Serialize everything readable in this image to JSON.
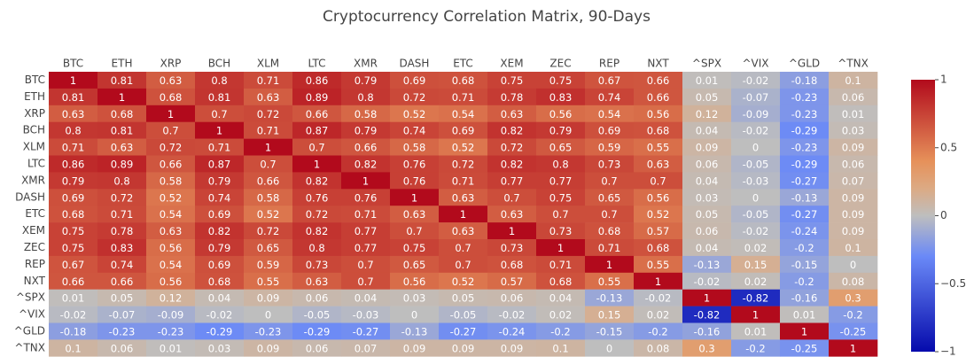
{
  "chart_data": {
    "type": "heatmap",
    "title": "Cryptocurrency Correlation Matrix, 90-Days",
    "x": [
      "BTC",
      "ETH",
      "XRP",
      "BCH",
      "XLM",
      "LTC",
      "XMR",
      "DASH",
      "ETC",
      "XEM",
      "ZEC",
      "REP",
      "NXT",
      "^SPX",
      "^VIX",
      "^GLD",
      "^TNX"
    ],
    "y": [
      "BTC",
      "ETH",
      "XRP",
      "BCH",
      "XLM",
      "LTC",
      "XMR",
      "DASH",
      "ETC",
      "XEM",
      "ZEC",
      "REP",
      "NXT",
      "^SPX",
      "^VIX",
      "^GLD",
      "^TNX"
    ],
    "z": [
      [
        1,
        0.81,
        0.63,
        0.8,
        0.71,
        0.86,
        0.79,
        0.69,
        0.68,
        0.75,
        0.75,
        0.67,
        0.66,
        0.01,
        -0.02,
        -0.18,
        0.1
      ],
      [
        0.81,
        1,
        0.68,
        0.81,
        0.63,
        0.89,
        0.8,
        0.72,
        0.71,
        0.78,
        0.83,
        0.74,
        0.66,
        0.05,
        -0.07,
        -0.23,
        0.06
      ],
      [
        0.63,
        0.68,
        1,
        0.7,
        0.72,
        0.66,
        0.58,
        0.52,
        0.54,
        0.63,
        0.56,
        0.54,
        0.56,
        0.12,
        -0.09,
        -0.23,
        0.01
      ],
      [
        0.8,
        0.81,
        0.7,
        1,
        0.71,
        0.87,
        0.79,
        0.74,
        0.69,
        0.82,
        0.79,
        0.69,
        0.68,
        0.04,
        -0.02,
        -0.29,
        0.03
      ],
      [
        0.71,
        0.63,
        0.72,
        0.71,
        1,
        0.7,
        0.66,
        0.58,
        0.52,
        0.72,
        0.65,
        0.59,
        0.55,
        0.09,
        0,
        -0.23,
        0.09
      ],
      [
        0.86,
        0.89,
        0.66,
        0.87,
        0.7,
        1,
        0.82,
        0.76,
        0.72,
        0.82,
        0.8,
        0.73,
        0.63,
        0.06,
        -0.05,
        -0.29,
        0.06
      ],
      [
        0.79,
        0.8,
        0.58,
        0.79,
        0.66,
        0.82,
        1,
        0.76,
        0.71,
        0.77,
        0.77,
        0.7,
        0.7,
        0.04,
        -0.03,
        -0.27,
        0.07
      ],
      [
        0.69,
        0.72,
        0.52,
        0.74,
        0.58,
        0.76,
        0.76,
        1,
        0.63,
        0.7,
        0.75,
        0.65,
        0.56,
        0.03,
        0,
        -0.13,
        0.09
      ],
      [
        0.68,
        0.71,
        0.54,
        0.69,
        0.52,
        0.72,
        0.71,
        0.63,
        1,
        0.63,
        0.7,
        0.7,
        0.52,
        0.05,
        -0.05,
        -0.27,
        0.09
      ],
      [
        0.75,
        0.78,
        0.63,
        0.82,
        0.72,
        0.82,
        0.77,
        0.7,
        0.63,
        1,
        0.73,
        0.68,
        0.57,
        0.06,
        -0.02,
        -0.24,
        0.09
      ],
      [
        0.75,
        0.83,
        0.56,
        0.79,
        0.65,
        0.8,
        0.77,
        0.75,
        0.7,
        0.73,
        1,
        0.71,
        0.68,
        0.04,
        0.02,
        -0.2,
        0.1
      ],
      [
        0.67,
        0.74,
        0.54,
        0.69,
        0.59,
        0.73,
        0.7,
        0.65,
        0.7,
        0.68,
        0.71,
        1,
        0.55,
        -0.13,
        0.15,
        -0.15,
        0
      ],
      [
        0.66,
        0.66,
        0.56,
        0.68,
        0.55,
        0.63,
        0.7,
        0.56,
        0.52,
        0.57,
        0.68,
        0.55,
        1,
        -0.02,
        0.02,
        -0.2,
        0.08
      ],
      [
        0.01,
        0.05,
        0.12,
        0.04,
        0.09,
        0.06,
        0.04,
        0.03,
        0.05,
        0.06,
        0.04,
        -0.13,
        -0.02,
        1,
        -0.82,
        -0.16,
        0.3
      ],
      [
        -0.02,
        -0.07,
        -0.09,
        -0.02,
        0,
        -0.05,
        -0.03,
        0,
        -0.05,
        -0.02,
        0.02,
        0.15,
        0.02,
        -0.82,
        1,
        0.01,
        -0.2
      ],
      [
        -0.18,
        -0.23,
        -0.23,
        -0.29,
        -0.23,
        -0.29,
        -0.27,
        -0.13,
        -0.27,
        -0.24,
        -0.2,
        -0.15,
        -0.2,
        -0.16,
        0.01,
        1,
        -0.25
      ],
      [
        0.1,
        0.06,
        0.01,
        0.03,
        0.09,
        0.06,
        0.07,
        0.09,
        0.09,
        0.09,
        0.1,
        0,
        0.08,
        0.3,
        -0.2,
        -0.25,
        1
      ]
    ],
    "zlim": [
      -1,
      1
    ],
    "zticks": [
      {
        "value": -1,
        "label": "−1"
      },
      {
        "value": -0.5,
        "label": "−0.5"
      },
      0,
      0.5,
      1
    ],
    "colorscale": [
      [
        0,
        "rgb(5,10,172)"
      ],
      [
        0.35,
        "rgb(106,137,247)"
      ],
      [
        0.5,
        "rgb(190,190,190)"
      ],
      [
        0.6,
        "rgb(220,170,132)"
      ],
      [
        0.7,
        "rgb(230,145,90)"
      ],
      [
        1,
        "rgb(178,10,28)"
      ]
    ]
  }
}
